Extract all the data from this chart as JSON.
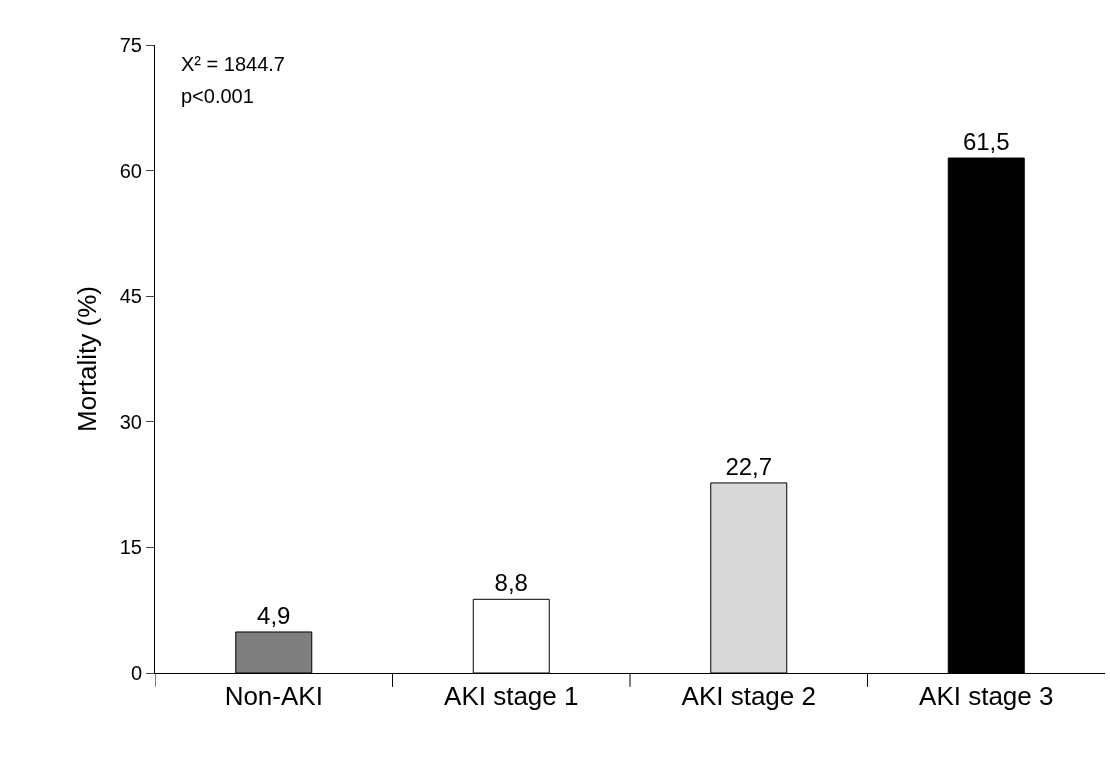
{
  "chart_data": {
    "type": "bar",
    "ylabel": "Mortality (%)",
    "categories": [
      "Non-AKI",
      "AKI stage 1",
      "AKI stage 2",
      "AKI stage 3"
    ],
    "values": [
      4.9,
      8.8,
      22.7,
      61.5
    ],
    "colors": [
      "#7f7f7f",
      "#ffffff",
      "#d9d9d9",
      "#000000"
    ],
    "value_labels": [
      "4,9",
      "8,8",
      "22,7",
      "61,5"
    ],
    "ylim": [
      0,
      75
    ],
    "yticks": [
      0,
      15,
      30,
      45,
      60,
      75
    ],
    "annotations": [
      "X² = 1844.7",
      "p<0.001"
    ]
  }
}
